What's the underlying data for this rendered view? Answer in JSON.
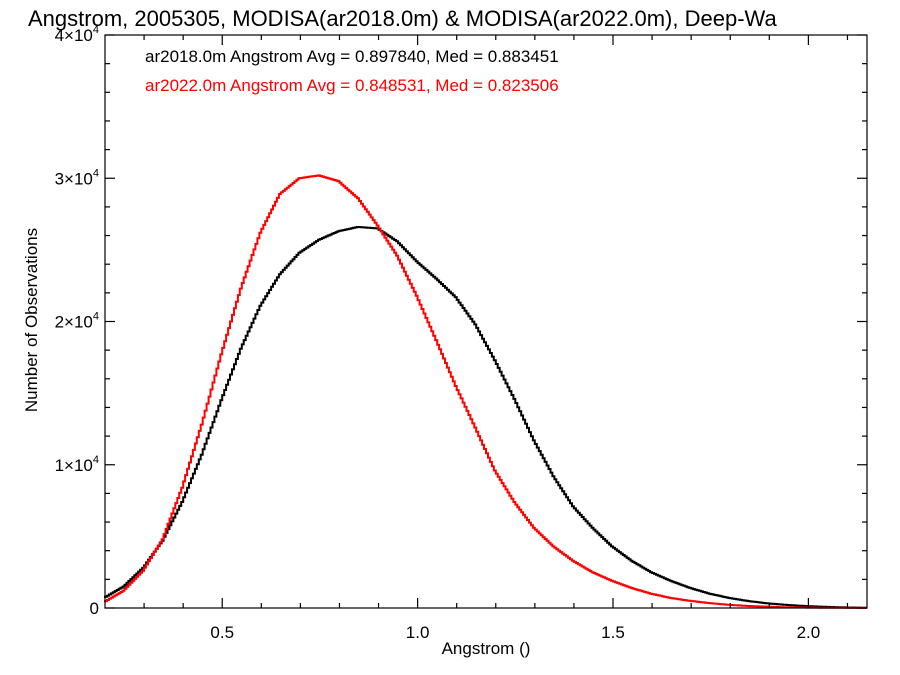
{
  "chart_data": {
    "type": "line",
    "title": "Angstrom, 2005305, MODISA(ar2018.0m) & MODISA(ar2022.0m), Deep-Wa",
    "xlabel": "Angstrom ()",
    "ylabel": "Number of Observations",
    "xlim": [
      0.2,
      2.15
    ],
    "ylim": [
      0,
      40000
    ],
    "x_ticks": [
      {
        "value": 0.5,
        "label": "0.5"
      },
      {
        "value": 1.0,
        "label": "1.0"
      },
      {
        "value": 1.5,
        "label": "1.5"
      },
      {
        "value": 2.0,
        "label": "2.0"
      }
    ],
    "y_ticks": [
      {
        "value": 0,
        "base": "0",
        "exp": ""
      },
      {
        "value": 10000,
        "base": "1×10",
        "exp": "4"
      },
      {
        "value": 20000,
        "base": "2×10",
        "exp": "4"
      },
      {
        "value": 30000,
        "base": "3×10",
        "exp": "4"
      },
      {
        "value": 40000,
        "base": "4×10",
        "exp": "4"
      }
    ],
    "legend_position": "top-left",
    "series": [
      {
        "legend": "ar2018.0m Angstrom Avg = 0.897840, Med = 0.883451",
        "color": "#000000",
        "x": [
          0.2,
          0.25,
          0.3,
          0.35,
          0.4,
          0.45,
          0.5,
          0.55,
          0.6,
          0.65,
          0.7,
          0.75,
          0.8,
          0.85,
          0.9,
          0.95,
          1.0,
          1.05,
          1.1,
          1.15,
          1.2,
          1.25,
          1.3,
          1.35,
          1.4,
          1.45,
          1.5,
          1.55,
          1.6,
          1.65,
          1.7,
          1.75,
          1.8,
          1.85,
          1.9,
          1.95,
          2.0,
          2.05,
          2.1,
          2.15
        ],
        "y": [
          700,
          1500,
          2800,
          4700,
          7400,
          10700,
          14500,
          18100,
          21100,
          23300,
          24800,
          25700,
          26300,
          26600,
          26500,
          25600,
          24200,
          23000,
          21700,
          19800,
          17300,
          14600,
          11700,
          9200,
          7100,
          5600,
          4300,
          3300,
          2500,
          1900,
          1400,
          1000,
          700,
          480,
          320,
          210,
          130,
          80,
          40,
          20
        ]
      },
      {
        "legend": "ar2022.0m Angstrom Avg = 0.848531, Med = 0.823506",
        "color": "#ff0000",
        "x": [
          0.2,
          0.25,
          0.3,
          0.35,
          0.4,
          0.45,
          0.5,
          0.55,
          0.6,
          0.65,
          0.7,
          0.75,
          0.8,
          0.85,
          0.9,
          0.95,
          1.0,
          1.05,
          1.1,
          1.15,
          1.2,
          1.25,
          1.3,
          1.35,
          1.4,
          1.45,
          1.5,
          1.55,
          1.6,
          1.65,
          1.7,
          1.75,
          1.8,
          1.85,
          1.9,
          1.95,
          2.0,
          2.05,
          2.1,
          2.15
        ],
        "y": [
          400,
          1200,
          2600,
          4800,
          8400,
          12800,
          17700,
          22300,
          26200,
          28900,
          30000,
          30200,
          29800,
          28600,
          26700,
          24600,
          21800,
          18700,
          15500,
          12600,
          9600,
          7400,
          5600,
          4300,
          3300,
          2500,
          1900,
          1400,
          1000,
          700,
          500,
          340,
          220,
          140,
          90,
          50,
          30,
          20,
          10,
          5
        ]
      }
    ]
  }
}
